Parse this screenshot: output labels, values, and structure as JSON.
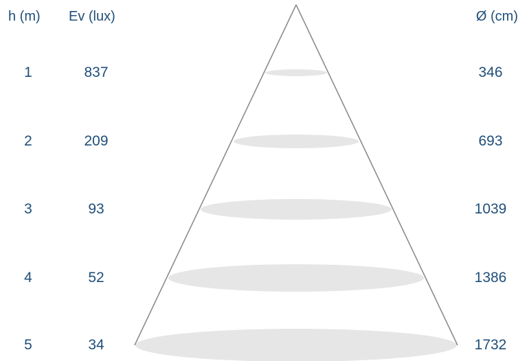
{
  "headers": {
    "height": "h (m)",
    "illuminance": "Ev (lux)",
    "diameter": "Ø (cm)"
  },
  "rows": [
    {
      "h": "1",
      "ev": "837",
      "d": "346"
    },
    {
      "h": "2",
      "ev": "209",
      "d": "693"
    },
    {
      "h": "3",
      "ev": "93",
      "d": "1039"
    },
    {
      "h": "4",
      "ev": "52",
      "d": "1386"
    },
    {
      "h": "5",
      "ev": "34",
      "d": "1732"
    }
  ],
  "colors": {
    "text": "#1f4e79",
    "cone_outline": "#8c8c8c",
    "spot_fill": "#e6e6e6"
  }
}
